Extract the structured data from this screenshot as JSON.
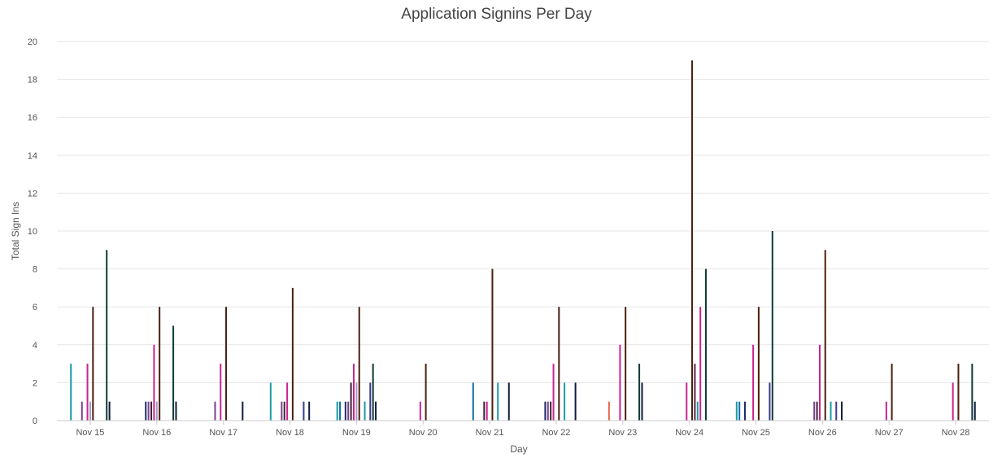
{
  "chart_data": {
    "type": "bar",
    "title": "Application Signins Per Day",
    "xlabel": "Day",
    "ylabel": "Total Sign Ins",
    "ylim": [
      0,
      20
    ],
    "yticks": [
      0,
      2,
      4,
      6,
      8,
      10,
      12,
      14,
      16,
      18,
      20
    ],
    "grid": true,
    "legend": "none",
    "categories": [
      "Nov 15",
      "Nov 16",
      "Nov 17",
      "Nov 18",
      "Nov 19",
      "Nov 20",
      "Nov 21",
      "Nov 22",
      "Nov 23",
      "Nov 24",
      "Nov 25",
      "Nov 26",
      "Nov 27",
      "Nov 28"
    ],
    "series": [
      {
        "color": "#1a9ba5",
        "values": [
          3,
          0,
          0,
          2,
          1,
          0,
          0,
          0,
          0,
          0,
          1,
          0,
          0,
          0
        ]
      },
      {
        "color": "#0e6ea8",
        "values": [
          0,
          0,
          0,
          0,
          1,
          0,
          2,
          0,
          0,
          0,
          1,
          0,
          0,
          0
        ]
      },
      {
        "color": "#e8674c",
        "values": [
          0,
          0,
          0,
          0,
          0,
          0,
          0,
          0,
          1,
          0,
          0,
          0,
          0,
          0
        ]
      },
      {
        "color": "#1c2b6b",
        "values": [
          0,
          1,
          0,
          0,
          1,
          0,
          0,
          1,
          0,
          0,
          1,
          0,
          0,
          0
        ]
      },
      {
        "color": "#7b3f8c",
        "values": [
          1,
          1,
          1,
          1,
          1,
          0,
          0,
          1,
          0,
          0,
          0,
          1,
          0,
          0
        ]
      },
      {
        "color": "#3b2236",
        "values": [
          0,
          1,
          0,
          1,
          2,
          0,
          1,
          1,
          0,
          0,
          0,
          1,
          0,
          0
        ]
      },
      {
        "color": "#c9238f",
        "values": [
          3,
          4,
          3,
          2,
          3,
          1,
          1,
          3,
          4,
          2,
          4,
          4,
          1,
          2
        ]
      },
      {
        "color": "#a49cc6",
        "values": [
          1,
          1,
          0,
          0,
          2,
          0,
          0,
          0,
          0,
          0,
          0,
          0,
          0,
          0
        ]
      },
      {
        "color": "#4a1f10",
        "values": [
          6,
          6,
          6,
          7,
          6,
          3,
          8,
          6,
          6,
          19,
          6,
          9,
          3,
          3
        ]
      },
      {
        "color": "#5e1f3a",
        "values": [
          0,
          0,
          0,
          0,
          0,
          0,
          0,
          0,
          0,
          3,
          0,
          0,
          0,
          0
        ]
      },
      {
        "color": "#1a9ba5",
        "values": [
          0,
          0,
          0,
          0,
          1,
          0,
          2,
          2,
          0,
          1,
          0,
          1,
          0,
          0
        ]
      },
      {
        "color": "#c9238f",
        "values": [
          0,
          0,
          0,
          0,
          0,
          0,
          0,
          0,
          0,
          6,
          0,
          0,
          0,
          0
        ]
      },
      {
        "color": "#3b3b8c",
        "values": [
          0,
          0,
          0,
          1,
          2,
          0,
          0,
          0,
          0,
          0,
          2,
          1,
          0,
          0
        ]
      },
      {
        "color": "#0b3a33",
        "values": [
          9,
          5,
          0,
          0,
          3,
          0,
          0,
          0,
          3,
          8,
          10,
          0,
          0,
          3
        ]
      },
      {
        "color": "#111b3c",
        "values": [
          1,
          1,
          1,
          1,
          1,
          0,
          2,
          2,
          2,
          0,
          0,
          1,
          0,
          1
        ]
      }
    ]
  }
}
